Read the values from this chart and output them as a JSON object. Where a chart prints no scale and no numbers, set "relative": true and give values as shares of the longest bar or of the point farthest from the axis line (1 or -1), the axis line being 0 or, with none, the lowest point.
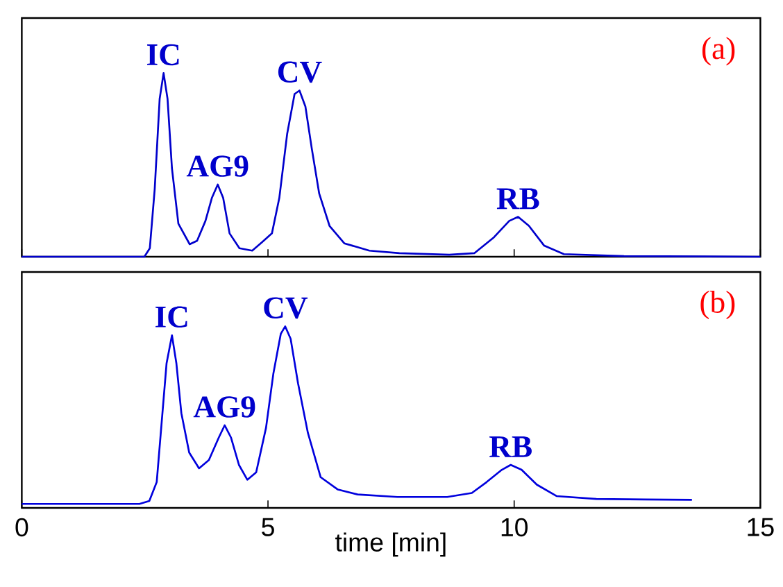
{
  "chart_data": [
    {
      "type": "line",
      "relative": true,
      "xlim": [
        0,
        15
      ],
      "xticks": [
        0,
        5,
        10,
        15
      ],
      "tick_labels": false,
      "x": [
        0,
        2.49,
        2.6,
        2.7,
        2.8,
        2.88,
        2.96,
        3.05,
        3.18,
        3.41,
        3.56,
        3.73,
        3.86,
        3.98,
        4.09,
        4.22,
        4.42,
        4.68,
        4.88,
        5.08,
        5.23,
        5.39,
        5.54,
        5.64,
        5.76,
        5.89,
        6.04,
        6.25,
        6.55,
        7.06,
        7.67,
        8.68,
        9.19,
        9.59,
        9.9,
        10.08,
        10.3,
        10.61,
        11.01,
        12.23,
        15
      ],
      "series": [
        {
          "color": "#0000cc",
          "values": [
            0,
            0,
            0.046,
            0.37,
            0.86,
            1.0,
            0.86,
            0.48,
            0.18,
            0.068,
            0.087,
            0.195,
            0.32,
            0.393,
            0.32,
            0.127,
            0.046,
            0.033,
            0.079,
            0.127,
            0.32,
            0.67,
            0.886,
            0.905,
            0.818,
            0.588,
            0.344,
            0.168,
            0.073,
            0.033,
            0.019,
            0.011,
            0.019,
            0.106,
            0.195,
            0.217,
            0.168,
            0.06,
            0.014,
            0.003,
            0
          ]
        }
      ],
      "annotations": [
        {
          "text": "IC",
          "x": 2.88,
          "y": 1.0
        },
        {
          "text": "AG9",
          "x": 3.98,
          "y": 0.393
        },
        {
          "text": "CV",
          "x": 5.64,
          "y": 0.905
        },
        {
          "text": "RB",
          "x": 10.08,
          "y": 0.217
        },
        "(a)"
      ]
    },
    {
      "type": "line",
      "relative": true,
      "xlim": [
        0,
        15
      ],
      "xticks": [
        0,
        5,
        10,
        15
      ],
      "tick_labels": "x",
      "xlabel": "time [min]",
      "x": [
        0,
        2.39,
        2.59,
        2.74,
        2.84,
        2.94,
        3.05,
        3.14,
        3.24,
        3.4,
        3.6,
        3.8,
        4.0,
        4.12,
        4.25,
        4.41,
        4.58,
        4.76,
        4.96,
        5.11,
        5.26,
        5.35,
        5.46,
        5.61,
        5.81,
        6.07,
        6.42,
        6.82,
        7.63,
        8.64,
        9.14,
        9.44,
        9.75,
        9.93,
        10.15,
        10.46,
        10.86,
        11.67,
        12.67,
        13.61
      ],
      "series": [
        {
          "color": "#0000dd",
          "values": [
            0.022,
            0.022,
            0.038,
            0.142,
            0.469,
            0.796,
            0.951,
            0.796,
            0.523,
            0.305,
            0.218,
            0.264,
            0.387,
            0.455,
            0.387,
            0.237,
            0.155,
            0.196,
            0.441,
            0.741,
            0.959,
            1.0,
            0.932,
            0.687,
            0.414,
            0.169,
            0.101,
            0.074,
            0.06,
            0.06,
            0.082,
            0.142,
            0.21,
            0.237,
            0.21,
            0.128,
            0.065,
            0.049,
            0.046,
            0.044
          ]
        }
      ],
      "annotations": [
        {
          "text": "IC",
          "x": 3.05,
          "y": 0.951
        },
        {
          "text": "AG9",
          "x": 4.12,
          "y": 0.455
        },
        {
          "text": "CV",
          "x": 5.35,
          "y": 1.0
        },
        {
          "text": "RB",
          "x": 9.93,
          "y": 0.237
        },
        "(b)"
      ]
    }
  ]
}
